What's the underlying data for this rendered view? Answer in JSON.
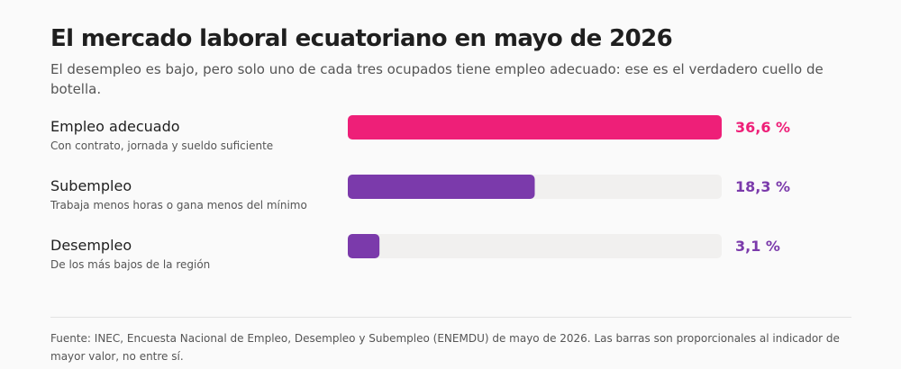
{
  "title": "El mercado laboral ecuatoriano en mayo de 2026",
  "subtitle": "El desempleo es bajo, pero solo uno de cada tres ocupados tiene empleo adecuado: ese es el verdadero cuello de botella.",
  "source": "Fuente: INEC, Encuesta Nacional de Empleo, Desempleo y Subempleo (ENEMDU) de mayo de 2026. Las barras son proporcionales al indicador de mayor valor, no entre sí.",
  "colors": {
    "highlight": "#ee1f78",
    "secondary": "#7b3aab",
    "track": "#f1f0ef"
  },
  "chart_data": {
    "type": "bar",
    "orientation": "horizontal",
    "scale": "proportional to the largest value",
    "categories": [
      "Empleo adecuado",
      "Subempleo",
      "Desempleo"
    ],
    "descriptions": [
      "Con contrato, jornada y sueldo suficiente",
      "Trabaja menos horas o gana menos del mínimo",
      "De los más bajos de la región"
    ],
    "values": [
      36.6,
      18.3,
      3.1
    ],
    "value_labels": [
      "36,6 %",
      "18,3 %",
      "3,1 %"
    ],
    "unit": "%",
    "xlim": [
      0,
      36.6
    ],
    "grid": false,
    "legend": "none"
  }
}
